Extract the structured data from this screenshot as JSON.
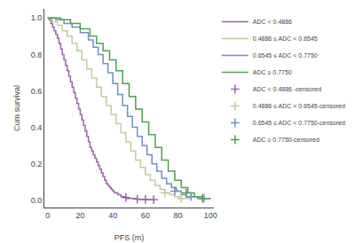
{
  "chart_data": {
    "type": "line",
    "xlabel": "PFS (m)",
    "ylabel": "Cum survival",
    "xlim": [
      -2,
      102
    ],
    "ylim": [
      -0.04,
      1.05
    ],
    "xticks": [
      0,
      20,
      40,
      60,
      80,
      100
    ],
    "yticks": [
      {
        "value": 0.0,
        "label": "0.0"
      },
      0.2,
      0.4,
      0.6,
      0.8,
      {
        "value": 1.0,
        "label": "1.0"
      }
    ],
    "grid": false,
    "legend": "right",
    "series": [
      {
        "name": "ADC < 0.4886",
        "color": "#9966aa",
        "type": "line",
        "line_style": "step",
        "x": [
          0,
          1,
          2,
          3,
          4,
          5,
          6,
          7,
          8,
          9,
          10,
          11,
          12,
          13,
          14,
          15,
          16,
          17,
          18,
          19,
          20,
          21,
          22,
          23,
          24,
          25,
          26,
          27,
          28,
          29,
          30,
          31,
          32,
          33,
          34,
          35,
          36,
          37,
          38,
          39,
          40,
          41,
          42,
          43,
          44,
          45,
          46,
          47,
          48,
          49,
          50,
          52,
          55,
          58,
          62,
          65
        ],
        "values": [
          1.0,
          0.99,
          0.97,
          0.95,
          0.93,
          0.91,
          0.89,
          0.86,
          0.83,
          0.8,
          0.77,
          0.74,
          0.71,
          0.68,
          0.65,
          0.62,
          0.59,
          0.56,
          0.53,
          0.5,
          0.47,
          0.44,
          0.41,
          0.38,
          0.35,
          0.32,
          0.29,
          0.27,
          0.25,
          0.23,
          0.21,
          0.19,
          0.17,
          0.15,
          0.13,
          0.11,
          0.09,
          0.08,
          0.07,
          0.06,
          0.05,
          0.04,
          0.04,
          0.03,
          0.03,
          0.02,
          0.02,
          0.02,
          0.01,
          0.01,
          0.01,
          0.01,
          0.005,
          0.005,
          0.003,
          0.003
        ]
      },
      {
        "name": "0.4886 ≤ ADC < 0.6545",
        "color": "#c8c8a0",
        "type": "line",
        "line_style": "step",
        "x": [
          0,
          3,
          6,
          9,
          12,
          15,
          18,
          21,
          24,
          27,
          30,
          33,
          36,
          39,
          42,
          45,
          48,
          51,
          54,
          57,
          60,
          63,
          66,
          69,
          72,
          75,
          78,
          81,
          84,
          87
        ],
        "values": [
          1.0,
          0.98,
          0.96,
          0.93,
          0.9,
          0.86,
          0.82,
          0.77,
          0.72,
          0.67,
          0.62,
          0.57,
          0.52,
          0.47,
          0.42,
          0.37,
          0.32,
          0.27,
          0.22,
          0.18,
          0.14,
          0.11,
          0.08,
          0.06,
          0.04,
          0.03,
          0.02,
          0.01,
          0.01,
          0.005
        ]
      },
      {
        "name": "0.6545 ≤ ADC < 0.7750",
        "color": "#7090c0",
        "type": "line",
        "line_style": "step",
        "x": [
          0,
          5,
          10,
          15,
          20,
          25,
          28,
          31,
          34,
          37,
          40,
          43,
          46,
          49,
          52,
          55,
          58,
          61,
          64,
          67,
          70,
          73,
          76,
          79,
          82,
          85,
          88,
          92,
          96,
          100
        ],
        "values": [
          1.0,
          0.99,
          0.97,
          0.95,
          0.92,
          0.88,
          0.84,
          0.8,
          0.75,
          0.7,
          0.64,
          0.58,
          0.52,
          0.46,
          0.4,
          0.35,
          0.3,
          0.25,
          0.2,
          0.16,
          0.12,
          0.09,
          0.07,
          0.05,
          0.03,
          0.02,
          0.02,
          0.01,
          0.01,
          0.01
        ]
      },
      {
        "name": "ADC ≥ 0.7750",
        "color": "#50a050",
        "type": "line",
        "line_style": "step",
        "x": [
          0,
          8,
          14,
          20,
          26,
          30,
          34,
          38,
          42,
          46,
          50,
          54,
          58,
          62,
          66,
          70,
          74,
          78,
          82,
          86,
          90,
          95,
          100
        ],
        "values": [
          1.0,
          0.99,
          0.97,
          0.94,
          0.9,
          0.86,
          0.82,
          0.77,
          0.71,
          0.64,
          0.57,
          0.5,
          0.43,
          0.36,
          0.29,
          0.22,
          0.16,
          0.11,
          0.07,
          0.04,
          0.02,
          0.01,
          0.01
        ]
      },
      {
        "name": "ADC < 0.4886 -censored",
        "color": "#9966aa",
        "type": "scatter",
        "marker": "cross",
        "x": [
          48,
          55,
          60,
          65
        ],
        "values": [
          0.015,
          0.006,
          0.004,
          0.003
        ]
      },
      {
        "name": "0.4886 ≤ ADC < 0.6545-censored",
        "color": "#c8c8a0",
        "type": "scatter",
        "marker": "cross",
        "x": [
          72,
          82
        ],
        "values": [
          0.04,
          0.01
        ]
      },
      {
        "name": "0.6545 ≤ ADC < 0.7750-censored",
        "color": "#7090c0",
        "type": "scatter",
        "marker": "cross",
        "x": [
          78,
          88,
          96
        ],
        "values": [
          0.05,
          0.02,
          0.01
        ]
      },
      {
        "name": "ADC ≥ 0.7750-censored",
        "color": "#50a050",
        "type": "scatter",
        "marker": "cross",
        "x": [
          85,
          95
        ],
        "values": [
          0.04,
          0.01
        ]
      }
    ]
  }
}
